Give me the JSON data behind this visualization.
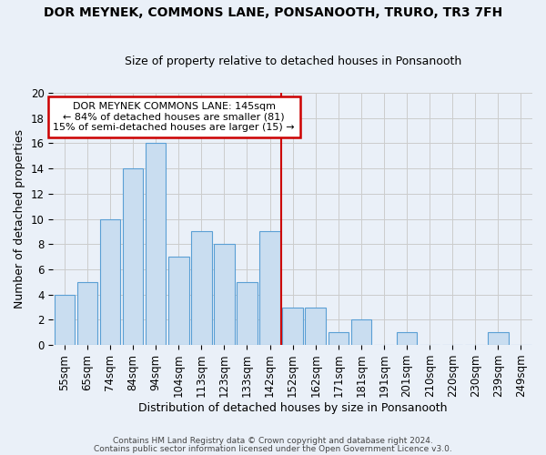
{
  "title": "DOR MEYNEK, COMMONS LANE, PONSANOOTH, TRURO, TR3 7FH",
  "subtitle": "Size of property relative to detached houses in Ponsanooth",
  "xlabel": "Distribution of detached houses by size in Ponsanooth",
  "ylabel": "Number of detached properties",
  "categories": [
    "55sqm",
    "65sqm",
    "74sqm",
    "84sqm",
    "94sqm",
    "104sqm",
    "113sqm",
    "123sqm",
    "133sqm",
    "142sqm",
    "152sqm",
    "162sqm",
    "171sqm",
    "181sqm",
    "191sqm",
    "201sqm",
    "210sqm",
    "220sqm",
    "230sqm",
    "239sqm",
    "249sqm"
  ],
  "values": [
    4,
    5,
    10,
    14,
    16,
    7,
    9,
    8,
    5,
    9,
    3,
    3,
    1,
    2,
    0,
    1,
    0,
    0,
    0,
    1,
    0
  ],
  "bar_color": "#c9ddf0",
  "bar_edge_color": "#5a9fd4",
  "grid_color": "#cccccc",
  "vline_x": 9.5,
  "vline_color": "#cc0000",
  "annotation_text": "DOR MEYNEK COMMONS LANE: 145sqm\n← 84% of detached houses are smaller (81)\n15% of semi-detached houses are larger (15) →",
  "annotation_box_color": "#ffffff",
  "annotation_box_edge": "#cc0000",
  "ylim": [
    0,
    20
  ],
  "yticks": [
    0,
    2,
    4,
    6,
    8,
    10,
    12,
    14,
    16,
    18,
    20
  ],
  "footer1": "Contains HM Land Registry data © Crown copyright and database right 2024.",
  "footer2": "Contains public sector information licensed under the Open Government Licence v3.0.",
  "bg_color": "#eaf0f8",
  "title_fontsize": 10,
  "subtitle_fontsize": 9,
  "ylabel_fontsize": 9,
  "xlabel_fontsize": 9,
  "tick_fontsize": 8.5,
  "ann_fontsize": 8,
  "footer_fontsize": 6.5
}
